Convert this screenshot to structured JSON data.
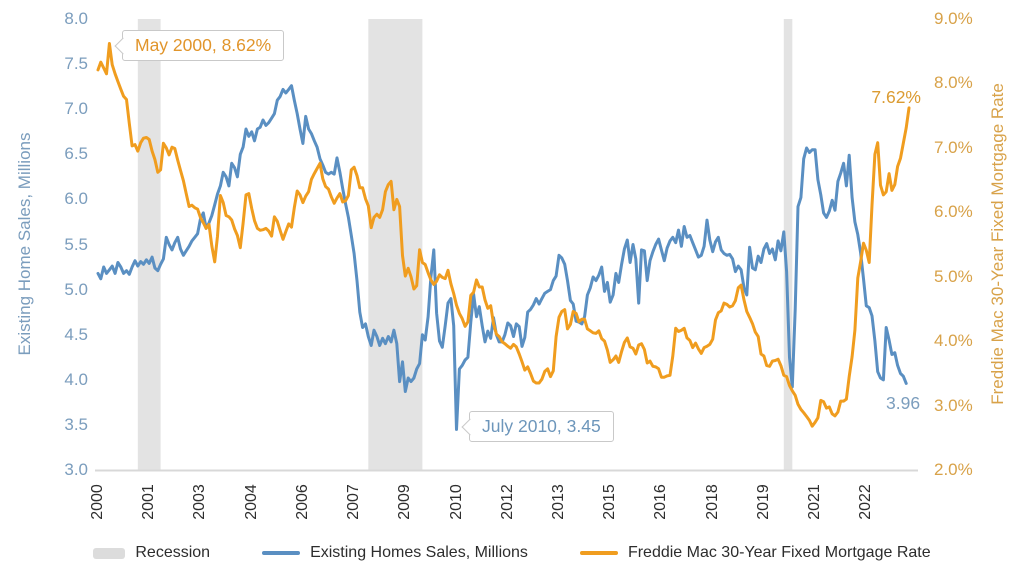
{
  "colors": {
    "sales_line": "#5a8fc2",
    "rate_line": "#f09d1f",
    "recession_band": "#e3e3e3",
    "axis_line": "#d8d8d8",
    "left_axis_text": "#7b9dbd",
    "right_axis_text": "#d8a249"
  },
  "annotations": {
    "may_2000": "May 2000, 8.62%",
    "july_2010": "July 2010, 3.45",
    "rate_end_label": "7.62%",
    "sales_end_label": "3.96"
  },
  "legend": {
    "items": [
      {
        "label": "Recession",
        "swatch": "gray-band"
      },
      {
        "label": "Existing Homes Sales, Millions",
        "swatch": "blue-line"
      },
      {
        "label": "Freddie Mac 30-Year Fixed Mortgage Rate",
        "swatch": "orange-line"
      }
    ]
  },
  "chart_data": {
    "type": "line",
    "x_start": "2000-01",
    "x_frequency": "monthly",
    "left_axis": {
      "label": "Existing Home Sales, Millions",
      "min": 3.0,
      "max": 8.0,
      "ticks": [
        "8.0",
        "7.5",
        "7.0",
        "6.5",
        "6.0",
        "5.5",
        "5.0",
        "4.5",
        "4.0",
        "3.5",
        "3.0"
      ]
    },
    "right_axis": {
      "label": "Freddie Mac 30-Year Fixed Mortgage Rate",
      "min": 2.0,
      "max": 9.0,
      "ticks": [
        "9.0%",
        "8.0%",
        "7.0%",
        "6.0%",
        "5.0%",
        "4.0%",
        "3.0%",
        "2.0%"
      ]
    },
    "x_axis": {
      "ticks": [
        {
          "label": "2000",
          "month": 0
        },
        {
          "label": "2001",
          "month": 18
        },
        {
          "label": "2003",
          "month": 36
        },
        {
          "label": "2004",
          "month": 54
        },
        {
          "label": "2006",
          "month": 72
        },
        {
          "label": "2007",
          "month": 90
        },
        {
          "label": "2009",
          "month": 108
        },
        {
          "label": "2010",
          "month": 126
        },
        {
          "label": "2012",
          "month": 144
        },
        {
          "label": "2013",
          "month": 162
        },
        {
          "label": "2015",
          "month": 180
        },
        {
          "label": "2016",
          "month": 198
        },
        {
          "label": "2018",
          "month": 216
        },
        {
          "label": "2019",
          "month": 234
        },
        {
          "label": "2021",
          "month": 252
        },
        {
          "label": "2022",
          "month": 270
        }
      ]
    },
    "recessions": [
      {
        "start_month": 14,
        "end_month": 22
      },
      {
        "start_month": 95,
        "end_month": 114
      },
      {
        "start_month": 241,
        "end_month": 244
      }
    ],
    "series": [
      {
        "name": "Existing Homes Sales, Millions",
        "axis": "left",
        "color": "#5a8fc2",
        "values": [
          5.18,
          5.12,
          5.25,
          5.18,
          5.22,
          5.26,
          5.18,
          5.3,
          5.25,
          5.18,
          5.21,
          5.17,
          5.25,
          5.32,
          5.26,
          5.31,
          5.28,
          5.33,
          5.29,
          5.36,
          5.24,
          5.21,
          5.28,
          5.34,
          5.58,
          5.5,
          5.44,
          5.52,
          5.58,
          5.45,
          5.38,
          5.43,
          5.48,
          5.54,
          5.58,
          5.62,
          5.78,
          5.85,
          5.68,
          5.74,
          5.82,
          5.94,
          6.06,
          6.15,
          6.3,
          6.25,
          6.15,
          6.4,
          6.35,
          6.25,
          6.5,
          6.58,
          6.78,
          6.7,
          6.75,
          6.65,
          6.78,
          6.8,
          6.88,
          6.82,
          6.85,
          6.9,
          6.95,
          7.1,
          7.14,
          7.22,
          7.18,
          7.22,
          7.26,
          7.1,
          6.95,
          6.78,
          6.62,
          6.92,
          6.78,
          6.73,
          6.65,
          6.58,
          6.45,
          6.38,
          6.3,
          6.28,
          6.3,
          6.28,
          6.46,
          6.3,
          6.12,
          5.95,
          5.8,
          5.6,
          5.4,
          5.1,
          4.75,
          4.58,
          4.62,
          4.48,
          4.38,
          4.55,
          4.48,
          4.38,
          4.46,
          4.4,
          4.48,
          4.42,
          4.55,
          4.4,
          3.98,
          4.2,
          3.87,
          4.02,
          3.98,
          4.02,
          4.12,
          4.18,
          4.5,
          4.44,
          4.7,
          5.14,
          5.44,
          4.74,
          4.43,
          4.36,
          4.6,
          4.85,
          4.9,
          4.6,
          3.45,
          4.12,
          4.16,
          4.22,
          4.25,
          4.64,
          4.95,
          4.7,
          4.81,
          4.6,
          4.42,
          4.54,
          4.46,
          4.69,
          4.5,
          4.42,
          4.42,
          4.5,
          4.63,
          4.6,
          4.48,
          4.62,
          4.59,
          4.37,
          4.47,
          4.75,
          4.78,
          4.83,
          4.9,
          4.84,
          4.9,
          4.96,
          4.98,
          5.0,
          5.1,
          5.15,
          5.38,
          5.35,
          5.28,
          5.1,
          4.88,
          4.84,
          4.65,
          4.64,
          4.62,
          4.7,
          4.94,
          5.02,
          5.14,
          5.1,
          5.16,
          5.25,
          4.98,
          5.08,
          4.86,
          4.94,
          5.18,
          5.08,
          5.28,
          5.45,
          5.55,
          5.3,
          5.5,
          5.34,
          4.85,
          5.44,
          5.43,
          5.1,
          5.32,
          5.42,
          5.5,
          5.56,
          5.44,
          5.32,
          5.46,
          5.54,
          5.58,
          5.52,
          5.66,
          5.48,
          5.7,
          5.58,
          5.6,
          5.52,
          5.44,
          5.36,
          5.38,
          5.48,
          5.77,
          5.55,
          5.42,
          5.53,
          5.58,
          5.44,
          5.4,
          5.38,
          5.39,
          5.34,
          5.2,
          5.26,
          5.22,
          5.02,
          4.94,
          5.47,
          5.24,
          5.22,
          5.37,
          5.3,
          5.45,
          5.51,
          5.4,
          5.45,
          5.33,
          5.54,
          5.43,
          5.64,
          5.2,
          4.25,
          3.92,
          4.78,
          5.92,
          6.02,
          6.45,
          6.57,
          6.52,
          6.55,
          6.55,
          6.22,
          6.05,
          5.85,
          5.8,
          5.87,
          5.99,
          5.88,
          6.2,
          6.29,
          6.4,
          6.15,
          6.49,
          6.02,
          5.75,
          5.61,
          5.41,
          5.12,
          4.82,
          4.8,
          4.71,
          4.43,
          4.09,
          4.02,
          4.0,
          4.58,
          4.44,
          4.28,
          4.3,
          4.16,
          4.07,
          4.04,
          3.96
        ]
      },
      {
        "name": "Freddie Mac 30-Year Fixed Mortgage Rate",
        "axis": "right",
        "color": "#f09d1f",
        "values": [
          8.21,
          8.33,
          8.24,
          8.15,
          8.62,
          8.29,
          8.15,
          8.03,
          7.91,
          7.8,
          7.75,
          7.38,
          7.03,
          7.05,
          6.95,
          7.08,
          7.15,
          7.16,
          7.13,
          6.95,
          6.82,
          6.62,
          6.66,
          7.07,
          7.0,
          6.89,
          7.01,
          6.99,
          6.81,
          6.65,
          6.49,
          6.29,
          6.09,
          6.11,
          6.07,
          6.05,
          5.92,
          5.84,
          5.75,
          5.81,
          5.48,
          5.23,
          5.63,
          6.26,
          6.15,
          5.95,
          5.93,
          5.88,
          5.74,
          5.64,
          5.45,
          5.83,
          6.27,
          6.29,
          6.06,
          5.87,
          5.75,
          5.72,
          5.73,
          5.75,
          5.71,
          5.63,
          5.93,
          5.86,
          5.72,
          5.58,
          5.7,
          5.82,
          5.77,
          6.07,
          6.33,
          6.27,
          6.15,
          6.25,
          6.32,
          6.51,
          6.6,
          6.68,
          6.76,
          6.52,
          6.4,
          6.36,
          6.24,
          6.14,
          6.22,
          6.29,
          6.16,
          6.18,
          6.26,
          6.66,
          6.7,
          6.57,
          6.38,
          6.38,
          6.21,
          6.1,
          5.76,
          5.92,
          5.97,
          5.92,
          6.04,
          6.32,
          6.43,
          6.48,
          6.04,
          6.2,
          6.09,
          5.33,
          5.01,
          5.13,
          5.0,
          4.81,
          4.86,
          5.42,
          5.22,
          5.19,
          5.06,
          4.95,
          4.88,
          4.93,
          5.03,
          4.99,
          4.97,
          5.1,
          4.89,
          4.74,
          4.56,
          4.43,
          4.35,
          4.23,
          4.3,
          4.71,
          4.76,
          4.95,
          4.84,
          4.84,
          4.64,
          4.51,
          4.55,
          4.27,
          4.11,
          4.07,
          3.99,
          3.96,
          3.92,
          3.89,
          3.95,
          3.91,
          3.8,
          3.68,
          3.55,
          3.6,
          3.5,
          3.38,
          3.35,
          3.35,
          3.41,
          3.53,
          3.57,
          3.45,
          3.54,
          4.07,
          4.37,
          4.46,
          4.49,
          4.19,
          4.26,
          4.46,
          4.43,
          4.3,
          4.34,
          4.34,
          4.19,
          4.16,
          4.13,
          4.12,
          4.16,
          4.04,
          4.0,
          3.86,
          3.67,
          3.71,
          3.77,
          3.67,
          3.84,
          3.98,
          4.05,
          3.91,
          3.89,
          3.8,
          3.94,
          3.96,
          3.87,
          3.66,
          3.69,
          3.61,
          3.6,
          3.57,
          3.44,
          3.44,
          3.46,
          3.47,
          3.77,
          4.2,
          4.15,
          4.17,
          4.2,
          4.05,
          4.01,
          3.9,
          3.97,
          3.88,
          3.81,
          3.9,
          3.92,
          3.95,
          4.03,
          4.33,
          4.44,
          4.47,
          4.59,
          4.57,
          4.53,
          4.55,
          4.63,
          4.83,
          4.87,
          4.64,
          4.46,
          4.37,
          4.27,
          4.14,
          4.07,
          3.8,
          3.77,
          3.62,
          3.61,
          3.69,
          3.7,
          3.72,
          3.62,
          3.47,
          3.45,
          3.31,
          3.23,
          3.16,
          3.02,
          2.94,
          2.89,
          2.83,
          2.77,
          2.68,
          2.74,
          2.81,
          3.08,
          3.06,
          2.96,
          2.98,
          2.87,
          2.84,
          2.9,
          3.07,
          3.07,
          3.1,
          3.45,
          3.76,
          4.17,
          4.98,
          5.23,
          5.52,
          5.41,
          5.22,
          6.11,
          6.9,
          7.08,
          6.42,
          6.27,
          6.32,
          6.6,
          6.34,
          6.43,
          6.71,
          6.84,
          7.07,
          7.31,
          7.62
        ]
      }
    ]
  }
}
